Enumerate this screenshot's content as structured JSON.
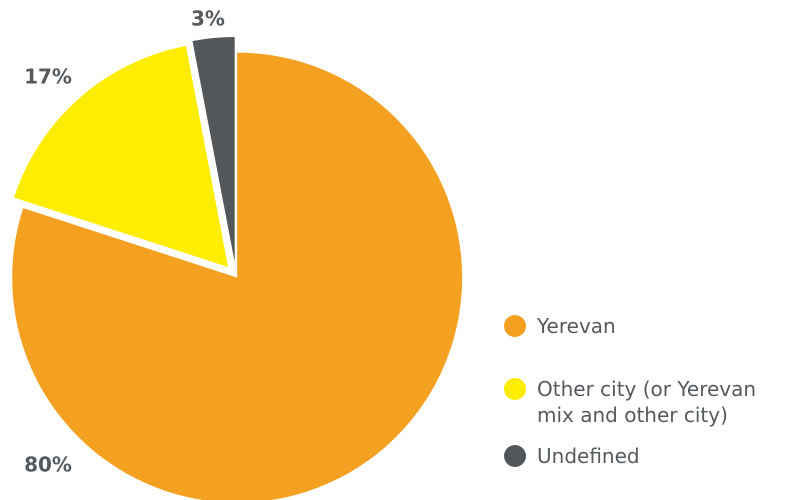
{
  "chart_data": {
    "type": "pie",
    "categories": [
      "Yerevan",
      "Other city (or Yerevan mix and other city)",
      "Undefined"
    ],
    "values": [
      80,
      17,
      3
    ],
    "value_labels": [
      "80%",
      "17%",
      "3%"
    ],
    "colors": [
      "#f4a021",
      "#ffed00",
      "#53575a"
    ],
    "legend": "right"
  }
}
